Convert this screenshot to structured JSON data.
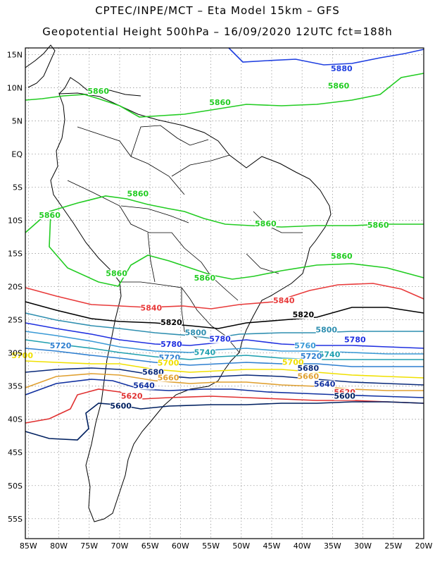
{
  "title_line1": "CPTEC/INPE/MCT –  Eta Model 15km – GFS",
  "title_line2": "Geopotential Height 500hPa – 16/09/2020 12UTC fct=188h",
  "lat_labels": [
    "15N",
    "10N",
    "5N",
    "EQ",
    "5S",
    "10S",
    "15S",
    "20S",
    "25S",
    "30S",
    "35S",
    "40S",
    "45S",
    "50S",
    "55S"
  ],
  "lon_labels": [
    "85W",
    "80W",
    "75W",
    "70W",
    "65W",
    "60W",
    "55W",
    "50W",
    "45W",
    "40W",
    "35W",
    "30W",
    "25W",
    "20W"
  ],
  "map_extent": {
    "lon": [
      -85.5,
      -20
    ],
    "lat": [
      -58,
      16
    ]
  },
  "contour_colors": {
    "5880": "#1f3fe0",
    "5860": "#22cc22",
    "5840": "#e83a3a",
    "5820": "#000000",
    "5800": "#2f8fb0",
    "5780": "#2030e0",
    "5760": "#3a9ad6",
    "5740": "#20a0b0",
    "5720": "#2e7fd0",
    "5700": "#f0e000",
    "5680": "#0a2a7a",
    "5660": "#e0a030",
    "5640": "#0f2f9f",
    "5620": "#e03030",
    "5600": "#002060"
  },
  "contour_labels": [
    {
      "text": "5880",
      "color": "5880",
      "lon": -33.5,
      "lat": 12.6
    },
    {
      "text": "5860",
      "color": "5860",
      "lon": -34.0,
      "lat": 10.0
    },
    {
      "text": "5860",
      "color": "5860",
      "lon": -53.5,
      "lat": 7.5
    },
    {
      "text": "5860",
      "color": "5860",
      "lon": -73.5,
      "lat": 9.2
    },
    {
      "text": "5860",
      "color": "5860",
      "lon": -67.0,
      "lat": -6.3
    },
    {
      "text": "5860",
      "color": "5860",
      "lon": -81.5,
      "lat": -9.5
    },
    {
      "text": "5860",
      "color": "5860",
      "lon": -46.0,
      "lat": -10.8
    },
    {
      "text": "5860",
      "color": "5860",
      "lon": -27.5,
      "lat": -11.0
    },
    {
      "text": "5860",
      "color": "5860",
      "lon": -33.5,
      "lat": -15.7
    },
    {
      "text": "5860",
      "color": "5860",
      "lon": -70.5,
      "lat": -18.3
    },
    {
      "text": "5860",
      "color": "5860",
      "lon": -56.0,
      "lat": -19.0
    },
    {
      "text": "5840",
      "color": "5840",
      "lon": -64.8,
      "lat": -23.5
    },
    {
      "text": "5840",
      "color": "5840",
      "lon": -43.0,
      "lat": -22.4
    },
    {
      "text": "5820",
      "color": "5820",
      "lon": -39.8,
      "lat": -24.5
    },
    {
      "text": "5820",
      "color": "5820",
      "lon": -61.5,
      "lat": -25.7
    },
    {
      "text": "5800",
      "color": "5800",
      "lon": -57.5,
      "lat": -27.2
    },
    {
      "text": "5800",
      "color": "5800",
      "lon": -36.0,
      "lat": -26.8
    },
    {
      "text": "5780",
      "color": "5780",
      "lon": -53.5,
      "lat": -28.2
    },
    {
      "text": "5780",
      "color": "5780",
      "lon": -31.3,
      "lat": -28.3
    },
    {
      "text": "5780",
      "color": "5780",
      "lon": -61.5,
      "lat": -29.0
    },
    {
      "text": "5760",
      "color": "5760",
      "lon": -39.5,
      "lat": -29.2
    },
    {
      "text": "5740",
      "color": "5740",
      "lon": -56.0,
      "lat": -30.2
    },
    {
      "text": "5740",
      "color": "5740",
      "lon": -35.5,
      "lat": -30.5
    },
    {
      "text": "5720",
      "color": "5720",
      "lon": -79.7,
      "lat": -29.2
    },
    {
      "text": "5720",
      "color": "5720",
      "lon": -61.8,
      "lat": -31.0
    },
    {
      "text": "5720",
      "color": "5720",
      "lon": -38.5,
      "lat": -30.8
    },
    {
      "text": "5700",
      "color": "5700",
      "lon": -86.0,
      "lat": -30.7
    },
    {
      "text": "5700",
      "color": "5700",
      "lon": -62.0,
      "lat": -31.8
    },
    {
      "text": "5700",
      "color": "5700",
      "lon": -41.5,
      "lat": -31.7
    },
    {
      "text": "5680",
      "color": "5680",
      "lon": -64.5,
      "lat": -33.2
    },
    {
      "text": "5680",
      "color": "5680",
      "lon": -39.0,
      "lat": -32.6
    },
    {
      "text": "5660",
      "color": "5660",
      "lon": -62.0,
      "lat": -34.0
    },
    {
      "text": "5660",
      "color": "5660",
      "lon": -39.0,
      "lat": -33.8
    },
    {
      "text": "5640",
      "color": "5640",
      "lon": -66.0,
      "lat": -35.2
    },
    {
      "text": "5640",
      "color": "5640",
      "lon": -36.3,
      "lat": -35.0
    },
    {
      "text": "5620",
      "color": "5620",
      "lon": -68.0,
      "lat": -36.8
    },
    {
      "text": "5620",
      "color": "5620",
      "lon": -33.0,
      "lat": -36.2
    },
    {
      "text": "5600",
      "color": "5600",
      "lon": -69.8,
      "lat": -38.3
    },
    {
      "text": "5600",
      "color": "5600",
      "lon": -33.0,
      "lat": -36.8
    }
  ]
}
